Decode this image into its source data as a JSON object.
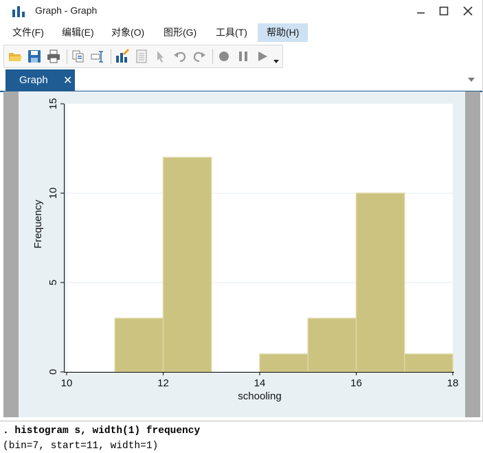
{
  "window": {
    "title": "Graph - Graph",
    "controls": [
      "minimize-icon",
      "maximize-icon",
      "close-icon"
    ]
  },
  "menubar": {
    "items": [
      {
        "label": "文件(F)"
      },
      {
        "label": "编辑(E)"
      },
      {
        "label": "对象(O)"
      },
      {
        "label": "图形(G)"
      },
      {
        "label": "工具(T)"
      },
      {
        "label": "帮助(H)",
        "active": true
      }
    ]
  },
  "toolbar": {
    "icons": [
      "open-icon",
      "save-icon",
      "print-icon",
      "copy-icon",
      "rename-icon",
      "graph-editor-icon",
      "data-editor-icon",
      "pointer-icon",
      "undo-icon",
      "redo-icon",
      "record-icon",
      "pause-icon",
      "play-icon",
      "dropdown-arrow-icon"
    ]
  },
  "tabs": [
    {
      "label": "Graph",
      "close": "✕"
    }
  ],
  "colors": {
    "tab_active": "#1e5c93",
    "bar_fill": "#cbc37f",
    "bar_edge": "#ddd7a6",
    "plot_background": "#ffffff",
    "graph_region": "#e8f0f4",
    "canvas_gray": "#a9a9a9",
    "menu_active": "#cde1f3"
  },
  "chart_data": {
    "type": "bar",
    "title": "",
    "xlabel": "schooling",
    "ylabel": "Frequency",
    "xlim": [
      10,
      18
    ],
    "ylim": [
      0,
      15
    ],
    "x_ticks": [
      "10",
      "12",
      "14",
      "16",
      "18"
    ],
    "y_ticks": [
      "0",
      "5",
      "10",
      "15"
    ],
    "grid": "horizontal",
    "bins": [
      {
        "start": 11,
        "end": 12,
        "value": 3
      },
      {
        "start": 12,
        "end": 13,
        "value": 12
      },
      {
        "start": 13,
        "end": 14,
        "value": 0
      },
      {
        "start": 14,
        "end": 15,
        "value": 1
      },
      {
        "start": 15,
        "end": 16,
        "value": 3
      },
      {
        "start": 16,
        "end": 17,
        "value": 10
      },
      {
        "start": 17,
        "end": 18,
        "value": 1
      }
    ]
  },
  "console": {
    "command": ". histogram s, width(1) frequency",
    "output": "(bin=7, start=11, width=1)"
  }
}
